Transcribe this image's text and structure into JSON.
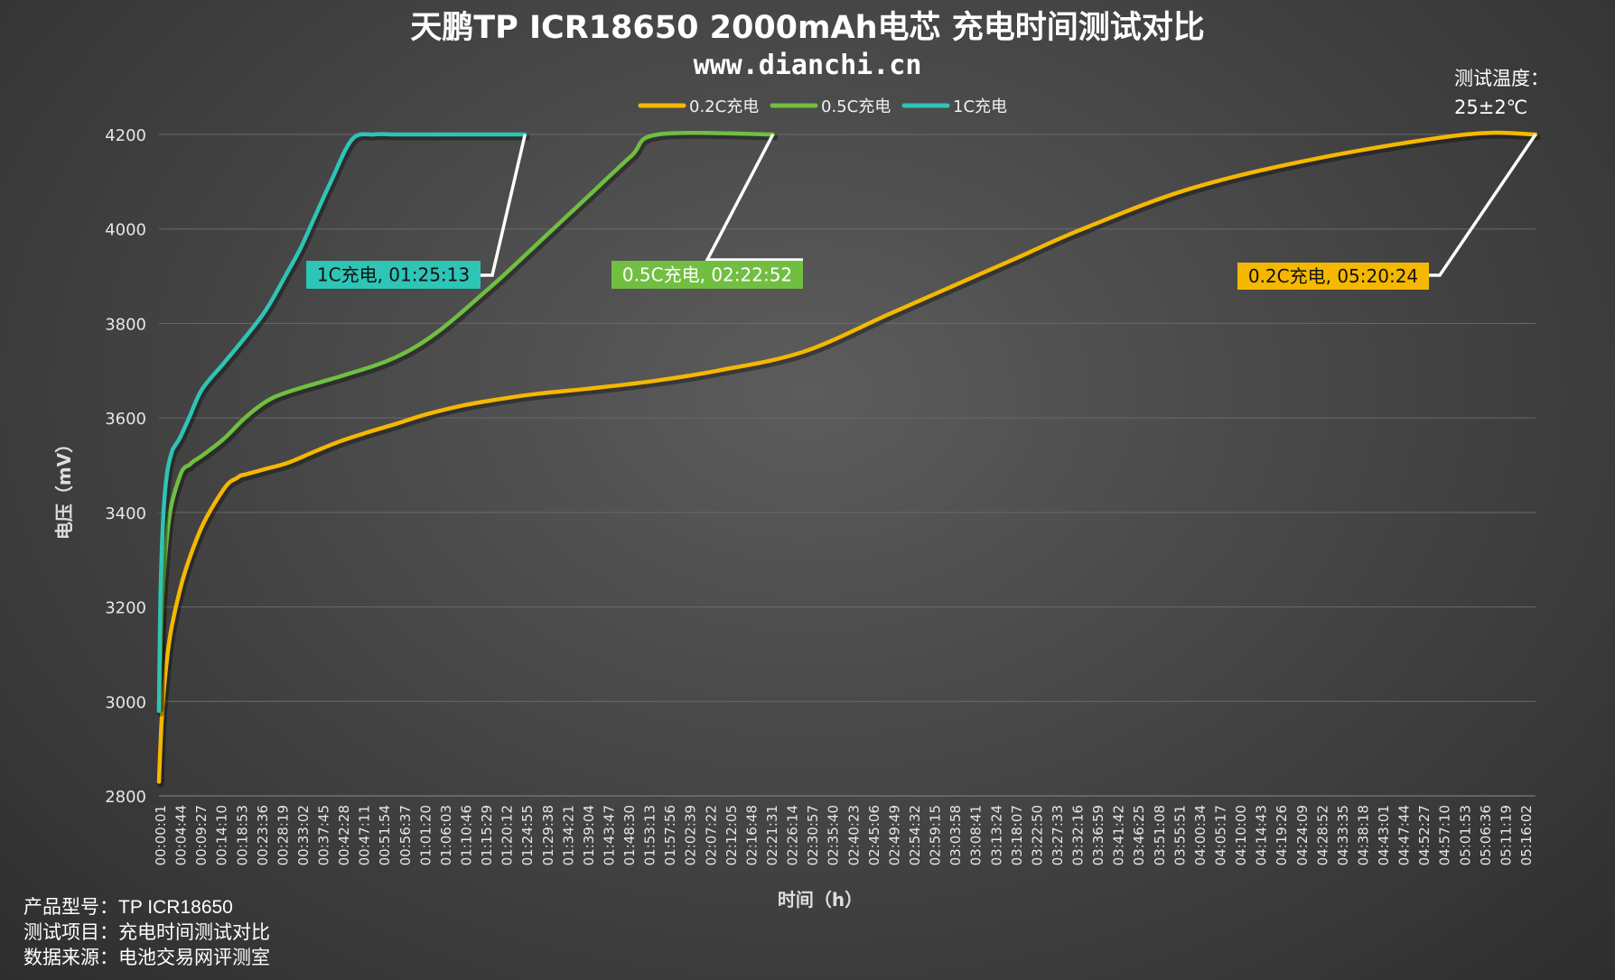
{
  "chart_data": {
    "type": "line",
    "title": "天鹏TP ICR18650 2000mAh电芯 充电时间测试对比",
    "subtitle": "www.dianchi.cn",
    "xlabel": "时间（h）",
    "ylabel": "电压（mV）",
    "ylim": [
      2800,
      4200
    ],
    "yticks": [
      2800,
      3000,
      3200,
      3400,
      3600,
      3800,
      4000,
      4200
    ],
    "x_tick_labels": [
      "00:00:01",
      "00:04:44",
      "00:09:27",
      "00:14:10",
      "00:18:53",
      "00:23:36",
      "00:28:19",
      "00:33:02",
      "00:37:45",
      "00:42:28",
      "00:47:11",
      "00:51:54",
      "00:56:37",
      "01:01:20",
      "01:06:03",
      "01:10:46",
      "01:15:29",
      "01:20:12",
      "01:24:55",
      "01:29:38",
      "01:34:21",
      "01:39:04",
      "01:43:47",
      "01:48:30",
      "01:53:13",
      "01:57:56",
      "02:02:39",
      "02:07:22",
      "02:12:05",
      "02:16:48",
      "02:21:31",
      "02:26:14",
      "02:30:57",
      "02:35:40",
      "02:40:23",
      "02:45:06",
      "02:49:49",
      "02:54:32",
      "02:59:15",
      "03:03:58",
      "03:08:41",
      "03:13:24",
      "03:18:07",
      "03:22:50",
      "03:27:33",
      "03:32:16",
      "03:36:59",
      "03:41:42",
      "03:46:25",
      "03:51:08",
      "03:55:51",
      "04:00:34",
      "04:05:17",
      "04:10:00",
      "04:14:43",
      "04:19:26",
      "04:24:09",
      "04:28:52",
      "04:33:35",
      "04:38:18",
      "04:43:01",
      "04:47:44",
      "04:52:27",
      "04:57:10",
      "05:01:53",
      "05:06:36",
      "05:11:19",
      "05:16:02"
    ],
    "x_unit": "minutes",
    "xlim": [
      0,
      320.4
    ],
    "grid": true,
    "legend_position": "top-center",
    "series": [
      {
        "name": "0.2C充电",
        "color": "#F5B800",
        "end_label": "0.2C充电, 05:20:24",
        "x": [
          0,
          0.5,
          1,
          2,
          3,
          5,
          7,
          10,
          13,
          16,
          18,
          19,
          20,
          24,
          30,
          36,
          42,
          48,
          55,
          62,
          70,
          78,
          88,
          100,
          115,
          130,
          150,
          170,
          185,
          200,
          215,
          240,
          270,
          304.2,
          320.4
        ],
        "values": [
          2830,
          2940,
          3010,
          3100,
          3160,
          3240,
          3300,
          3370,
          3420,
          3460,
          3472,
          3478,
          3480,
          3490,
          3505,
          3528,
          3550,
          3568,
          3587,
          3607,
          3625,
          3638,
          3651,
          3662,
          3678,
          3700,
          3740,
          3820,
          3880,
          3940,
          4000,
          4085,
          4150,
          4200,
          4200
        ]
      },
      {
        "name": "0.5C充电",
        "color": "#70BF41",
        "end_label": "0.5C充电, 02:22:52",
        "x": [
          0,
          0.5,
          1,
          2,
          3,
          5,
          6,
          7,
          8,
          10,
          15,
          20,
          25,
          30,
          40,
          50,
          55,
          60,
          65,
          70,
          75,
          80,
          90,
          100,
          110,
          116.2,
          142.9
        ],
        "values": [
          2990,
          3150,
          3250,
          3360,
          3420,
          3480,
          3495,
          3500,
          3508,
          3520,
          3555,
          3600,
          3635,
          3655,
          3682,
          3710,
          3728,
          3752,
          3783,
          3820,
          3860,
          3900,
          3985,
          4070,
          4155,
          4200,
          4200
        ]
      },
      {
        "name": "1C充电",
        "color": "#2EC4B6",
        "end_label": "1C充电, 01:25:13",
        "x": [
          0,
          0.3,
          0.7,
          1.2,
          2,
          3,
          3.5,
          4,
          5,
          7,
          10,
          15,
          20,
          25,
          30,
          33,
          36,
          40,
          45,
          50,
          54.6,
          60,
          85.2
        ],
        "values": [
          2980,
          3200,
          3330,
          3420,
          3490,
          3528,
          3538,
          3545,
          3560,
          3600,
          3660,
          3715,
          3770,
          3830,
          3910,
          3960,
          4020,
          4100,
          4190,
          4200,
          4200,
          4200,
          4200
        ]
      }
    ],
    "annotations": [
      {
        "label": "测试温度：",
        "sub": "25±2℃"
      }
    ]
  },
  "info": {
    "model": "产品型号：TP ICR18650",
    "item": "测试项目：充电时间测试对比",
    "source": "数据来源：电池交易网评测室"
  }
}
